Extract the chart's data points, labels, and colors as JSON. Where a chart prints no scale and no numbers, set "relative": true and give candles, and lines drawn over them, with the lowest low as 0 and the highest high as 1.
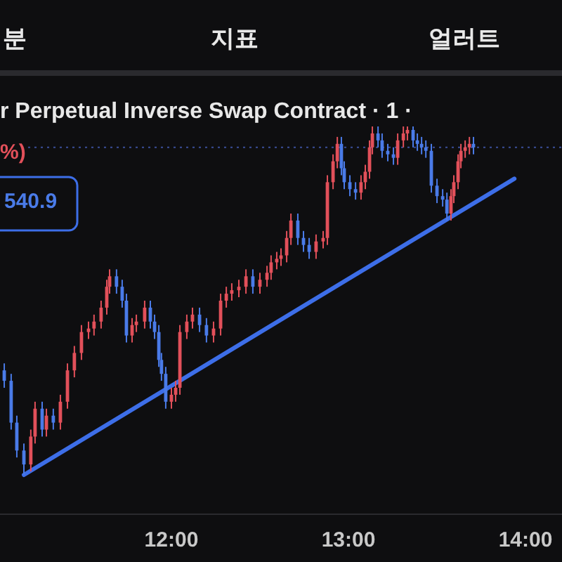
{
  "chart_data": {
    "type": "candlestick",
    "title": "r Perpetual Inverse Swap Contract · 1 ·",
    "annotations": [
      "분",
      "지표",
      "얼러트",
      "%)",
      "540.9"
    ],
    "relative": true,
    "tick_labels": "x",
    "xlim": [
      11.032,
      14.206
    ],
    "xticks": [
      {
        "value": 12,
        "label": "12:00"
      },
      {
        "value": 13,
        "label": "13:00"
      },
      {
        "value": 14,
        "label": "14:00"
      }
    ],
    "x": [
      11.056,
      11.095,
      11.127,
      11.167,
      11.206,
      11.23,
      11.27,
      11.294,
      11.333,
      11.373,
      11.413,
      11.452,
      11.492,
      11.532,
      11.563,
      11.603,
      11.635,
      11.651,
      11.69,
      11.722,
      11.746,
      11.778,
      11.802,
      11.849,
      11.881,
      11.905,
      11.929,
      11.944,
      11.968,
      12.0,
      12.024,
      12.048,
      12.087,
      12.119,
      12.159,
      12.198,
      12.238,
      12.278,
      12.31,
      12.341,
      12.381,
      12.421,
      12.46,
      12.5,
      12.54,
      12.563,
      12.595,
      12.619,
      12.651,
      12.675,
      12.714,
      12.746,
      12.778,
      12.817,
      12.857,
      12.881,
      12.913,
      12.937,
      12.96,
      12.976,
      13.008,
      13.04,
      13.071,
      13.095,
      13.119,
      13.135,
      13.167,
      13.19,
      13.222,
      13.254,
      13.278,
      13.31,
      13.333,
      13.365,
      13.389,
      13.413,
      13.437,
      13.468,
      13.5,
      13.532,
      13.556,
      13.579,
      13.595,
      13.619,
      13.635,
      13.659,
      13.683,
      13.706
    ],
    "ohlc": [
      [
        0.3,
        0.32,
        0.25,
        0.27
      ],
      [
        0.27,
        0.29,
        0.13,
        0.15
      ],
      [
        0.15,
        0.17,
        0.05,
        0.07
      ],
      [
        0.07,
        0.09,
        0,
        0.03
      ],
      [
        0.03,
        0.13,
        0.01,
        0.11
      ],
      [
        0.11,
        0.21,
        0.09,
        0.19
      ],
      [
        0.19,
        0.21,
        0.11,
        0.13
      ],
      [
        0.13,
        0.19,
        0.11,
        0.17
      ],
      [
        0.17,
        0.19,
        0.13,
        0.15
      ],
      [
        0.15,
        0.23,
        0.13,
        0.21
      ],
      [
        0.21,
        0.32,
        0.19,
        0.3
      ],
      [
        0.3,
        0.37,
        0.28,
        0.35
      ],
      [
        0.35,
        0.43,
        0.33,
        0.41
      ],
      [
        0.41,
        0.44,
        0.39,
        0.42
      ],
      [
        0.42,
        0.46,
        0.4,
        0.44
      ],
      [
        0.44,
        0.5,
        0.42,
        0.48
      ],
      [
        0.48,
        0.56,
        0.46,
        0.54
      ],
      [
        0.54,
        0.59,
        0.52,
        0.57
      ],
      [
        0.57,
        0.59,
        0.52,
        0.54
      ],
      [
        0.54,
        0.56,
        0.48,
        0.5
      ],
      [
        0.5,
        0.52,
        0.38,
        0.4
      ],
      [
        0.4,
        0.45,
        0.38,
        0.43
      ],
      [
        0.43,
        0.46,
        0.41,
        0.44
      ],
      [
        0.44,
        0.5,
        0.42,
        0.48
      ],
      [
        0.48,
        0.5,
        0.42,
        0.44
      ],
      [
        0.44,
        0.46,
        0.39,
        0.41
      ],
      [
        0.41,
        0.43,
        0.31,
        0.33
      ],
      [
        0.33,
        0.35,
        0.27,
        0.29
      ],
      [
        0.29,
        0.31,
        0.19,
        0.21
      ],
      [
        0.21,
        0.25,
        0.19,
        0.23
      ],
      [
        0.23,
        0.27,
        0.21,
        0.25
      ],
      [
        0.25,
        0.43,
        0.23,
        0.41
      ],
      [
        0.41,
        0.46,
        0.39,
        0.44
      ],
      [
        0.44,
        0.48,
        0.42,
        0.46
      ],
      [
        0.46,
        0.48,
        0.41,
        0.43
      ],
      [
        0.43,
        0.45,
        0.38,
        0.4
      ],
      [
        0.4,
        0.44,
        0.38,
        0.42
      ],
      [
        0.42,
        0.52,
        0.4,
        0.5
      ],
      [
        0.5,
        0.54,
        0.48,
        0.52
      ],
      [
        0.52,
        0.55,
        0.5,
        0.53
      ],
      [
        0.53,
        0.56,
        0.51,
        0.54
      ],
      [
        0.54,
        0.59,
        0.52,
        0.57
      ],
      [
        0.57,
        0.59,
        0.52,
        0.54
      ],
      [
        0.54,
        0.58,
        0.52,
        0.56
      ],
      [
        0.56,
        0.6,
        0.54,
        0.58
      ],
      [
        0.58,
        0.63,
        0.56,
        0.61
      ],
      [
        0.61,
        0.64,
        0.59,
        0.62
      ],
      [
        0.62,
        0.65,
        0.6,
        0.63
      ],
      [
        0.63,
        0.7,
        0.61,
        0.68
      ],
      [
        0.68,
        0.75,
        0.66,
        0.73
      ],
      [
        0.73,
        0.75,
        0.66,
        0.68
      ],
      [
        0.68,
        0.7,
        0.64,
        0.66
      ],
      [
        0.66,
        0.68,
        0.62,
        0.64
      ],
      [
        0.64,
        0.69,
        0.62,
        0.67
      ],
      [
        0.67,
        0.7,
        0.65,
        0.68
      ],
      [
        0.68,
        0.86,
        0.66,
        0.84
      ],
      [
        0.84,
        0.92,
        0.82,
        0.9
      ],
      [
        0.9,
        0.97,
        0.88,
        0.95
      ],
      [
        0.95,
        0.97,
        0.86,
        0.88
      ],
      [
        0.88,
        0.9,
        0.82,
        0.84
      ],
      [
        0.84,
        0.86,
        0.8,
        0.82
      ],
      [
        0.82,
        0.84,
        0.79,
        0.81
      ],
      [
        0.81,
        0.86,
        0.79,
        0.84
      ],
      [
        0.84,
        0.89,
        0.82,
        0.87
      ],
      [
        0.87,
        0.96,
        0.85,
        0.94
      ],
      [
        0.94,
        1,
        0.92,
        0.98
      ],
      [
        0.98,
        1,
        0.94,
        0.96
      ],
      [
        0.96,
        0.98,
        0.91,
        0.93
      ],
      [
        0.93,
        0.95,
        0.9,
        0.92
      ],
      [
        0.92,
        0.94,
        0.89,
        0.91
      ],
      [
        0.91,
        0.98,
        0.89,
        0.96
      ],
      [
        0.96,
        1,
        0.94,
        0.98
      ],
      [
        0.98,
        1,
        0.96,
        0.99
      ],
      [
        0.99,
        1,
        0.94,
        0.96
      ],
      [
        0.96,
        0.98,
        0.93,
        0.95
      ],
      [
        0.95,
        0.97,
        0.92,
        0.94
      ],
      [
        0.94,
        0.96,
        0.91,
        0.93
      ],
      [
        0.93,
        0.95,
        0.81,
        0.83
      ],
      [
        0.83,
        0.85,
        0.78,
        0.8
      ],
      [
        0.8,
        0.82,
        0.77,
        0.79
      ],
      [
        0.79,
        0.81,
        0.73,
        0.75
      ],
      [
        0.75,
        0.82,
        0.73,
        0.8
      ],
      [
        0.8,
        0.86,
        0.78,
        0.84
      ],
      [
        0.84,
        0.92,
        0.82,
        0.9
      ],
      [
        0.9,
        0.95,
        0.88,
        0.93
      ],
      [
        0.93,
        0.96,
        0.91,
        0.94
      ],
      [
        0.94,
        0.97,
        0.92,
        0.95
      ],
      [
        0.95,
        0.97,
        0.92,
        0.94
      ]
    ],
    "series": [
      {
        "type": "line",
        "color": "#3d6ee8",
        "x": [
          11.167,
          13.937
        ],
        "values": [
          0,
          0.85
        ]
      }
    ],
    "ref_lines": [
      {
        "axis": "y",
        "value": 0.94,
        "color": "#3b4f9a",
        "line_style": "dotted"
      }
    ]
  }
}
